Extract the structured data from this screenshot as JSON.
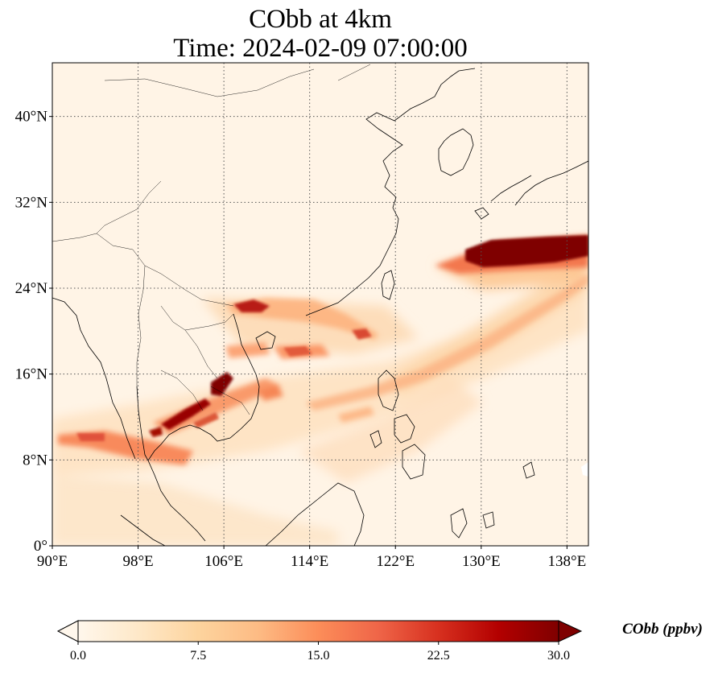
{
  "title": {
    "line1": "CObb at 4km",
    "line2": "Time: 2024-02-09 07:00:00"
  },
  "map": {
    "lon_range": [
      90,
      140
    ],
    "lat_range": [
      0,
      45
    ],
    "lon_ticks": [
      {
        "value": 90,
        "label": "90°E"
      },
      {
        "value": 98,
        "label": "98°E"
      },
      {
        "value": 106,
        "label": "106°E"
      },
      {
        "value": 114,
        "label": "114°E"
      },
      {
        "value": 122,
        "label": "122°E"
      },
      {
        "value": 130,
        "label": "130°E"
      },
      {
        "value": 138,
        "label": "138°E"
      }
    ],
    "lat_ticks": [
      {
        "value": 0,
        "label": "0°"
      },
      {
        "value": 8,
        "label": "8°N"
      },
      {
        "value": 16,
        "label": "16°N"
      },
      {
        "value": 24,
        "label": "24°N"
      },
      {
        "value": 32,
        "label": "32°N"
      },
      {
        "value": 40,
        "label": "40°N"
      }
    ],
    "gridlines": true,
    "background_color": "#fff4e6"
  },
  "colorbar": {
    "label": "CObb (ppbv)",
    "min": 0,
    "max": 30,
    "ticks": [
      "0.0",
      "7.5",
      "15.0",
      "22.5",
      "30.0"
    ],
    "extend": "both",
    "colormap": "OrRd",
    "colors": [
      "#fff7ec",
      "#fee8c8",
      "#fdd49e",
      "#fdbb84",
      "#fc8d59",
      "#ef6548",
      "#d7301f",
      "#b30000",
      "#7f0000"
    ]
  }
}
